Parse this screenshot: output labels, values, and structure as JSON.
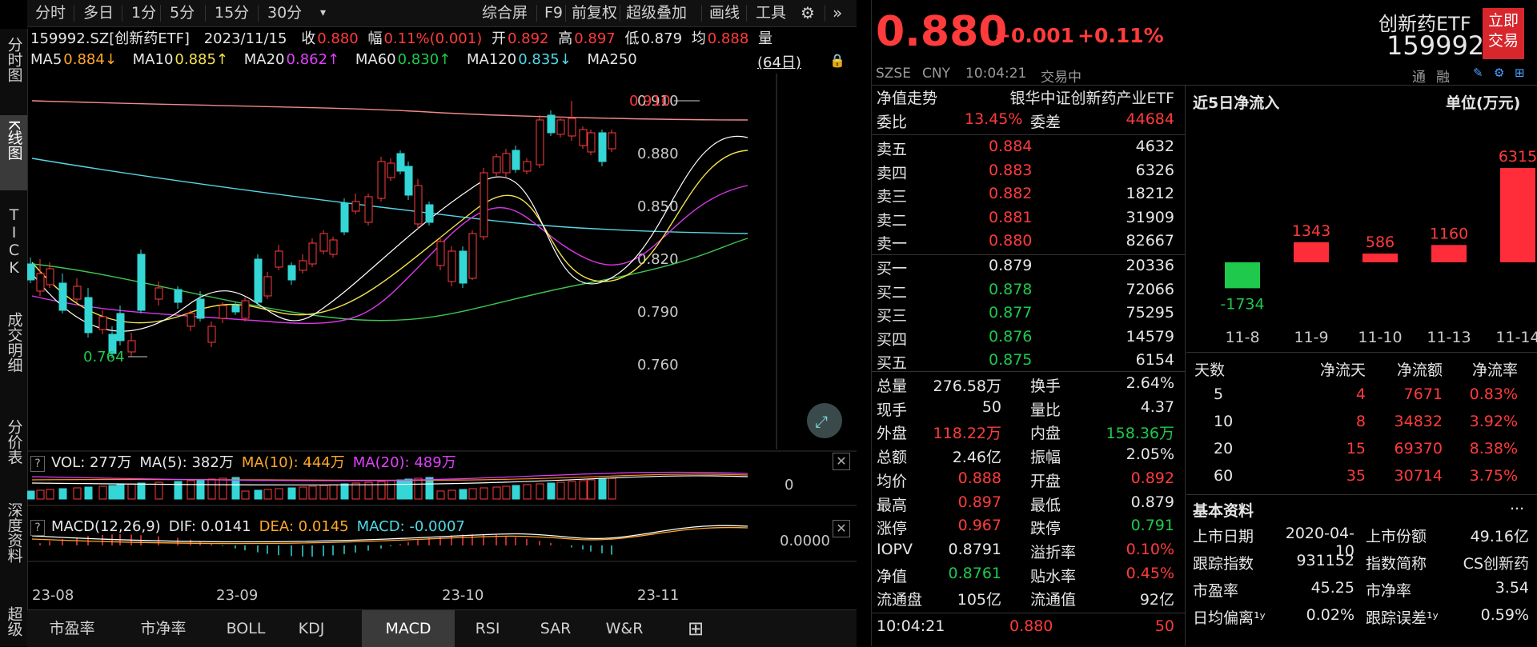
{
  "toolbar": {
    "periods": [
      "分时",
      "多日",
      "1分",
      "5分",
      "15分",
      "30分"
    ],
    "active_period": "",
    "right_items": [
      "综合屏",
      "F9",
      "前复权",
      "超级叠加",
      "画线",
      "工具"
    ]
  },
  "side_tabs": [
    "分时图",
    "K线图",
    "TICK",
    "成交明细",
    "分价表",
    "深度资料",
    "超级"
  ],
  "side_tabs_active": "K线图",
  "info_line": {
    "code_name": "159992.SZ[创新药ETF]",
    "date": "2023/11/15",
    "close_label": "收",
    "close": "0.880",
    "change_label": "幅",
    "change": "0.11%(0.001)",
    "open_label": "开",
    "open": "0.892",
    "high_label": "高",
    "high": "0.897",
    "low_label": "低",
    "low": "0.879",
    "avg_label": "均",
    "avg": "0.888",
    "vol_label": "量"
  },
  "ma_line": {
    "ma5": "MA5",
    "ma5_val": "0.884↓",
    "ma10": "MA10",
    "ma10_val": "0.885↑",
    "ma20": "MA20",
    "ma20_val": "0.862↑",
    "ma60": "MA60",
    "ma60_val": "0.830↑",
    "ma120": "MA120",
    "ma120_val": "0.835↓",
    "ma250": "MA250",
    "days": "(64日)"
  },
  "price_axis": [
    "0.910",
    "0.880",
    "0.850",
    "0.820",
    "0.790",
    "0.760"
  ],
  "annotations": {
    "high": "0.910",
    "low": "0.764"
  },
  "vol_panel": {
    "q": "?",
    "label": "VOL: 277万",
    "ma5": "MA(5): 382万",
    "ma10": "MA(10): 444万",
    "ma20": "MA(20): 489万",
    "axis_zero": "0"
  },
  "macd_panel": {
    "q": "?",
    "label": "MACD(12,26,9)",
    "dif": "DIF: 0.0141",
    "dea": "DEA: 0.0145",
    "macd": "MACD: -0.0007",
    "axis_zero": "0.0000"
  },
  "date_axis": [
    "23-08",
    "23-09",
    "23-10",
    "23-11"
  ],
  "bottom_tabs": [
    "市盈率",
    "市净率",
    "BOLL",
    "KDJ",
    "MACD",
    "RSI",
    "SAR",
    "W&R"
  ],
  "bottom_tabs_active": "MACD",
  "quote": {
    "price": "0.880",
    "change": "+0.001",
    "change_pct": "+0.11%",
    "name": "创新药ETF",
    "code": "159992",
    "trade_btn": "立即交易",
    "exchange": "SZSE",
    "currency": "CNY",
    "time": "10:04:21",
    "status": "交易中",
    "tong": "通",
    "rong": "融"
  },
  "nav_row": {
    "label": "净值走势",
    "fund": "银华中证创新药产业ETF"
  },
  "weibi": {
    "label": "委比",
    "value": "13.45%",
    "label2": "委差",
    "value2": "44684"
  },
  "asks": [
    {
      "label": "卖五",
      "price": "0.884",
      "vol": "4632"
    },
    {
      "label": "卖四",
      "price": "0.883",
      "vol": "6326"
    },
    {
      "label": "卖三",
      "price": "0.882",
      "vol": "18212"
    },
    {
      "label": "卖二",
      "price": "0.881",
      "vol": "31909"
    },
    {
      "label": "卖一",
      "price": "0.880",
      "vol": "82667"
    }
  ],
  "bids": [
    {
      "label": "买一",
      "price": "0.879",
      "vol": "20336"
    },
    {
      "label": "买二",
      "price": "0.878",
      "vol": "72066"
    },
    {
      "label": "买三",
      "price": "0.877",
      "vol": "75295"
    },
    {
      "label": "买四",
      "price": "0.876",
      "vol": "14579"
    },
    {
      "label": "买五",
      "price": "0.875",
      "vol": "6154"
    }
  ],
  "stats": [
    {
      "l1": "总量",
      "v1": "276.58万",
      "c1": "white",
      "l2": "换手",
      "v2": "2.64%",
      "c2": "white"
    },
    {
      "l1": "现手",
      "v1": "50",
      "c1": "white",
      "l2": "量比",
      "v2": "4.37",
      "c2": "white"
    },
    {
      "l1": "外盘",
      "v1": "118.22万",
      "c1": "red",
      "l2": "内盘",
      "v2": "158.36万",
      "c2": "green"
    },
    {
      "l1": "总额",
      "v1": "2.46亿",
      "c1": "white",
      "l2": "振幅",
      "v2": "2.05%",
      "c2": "white"
    },
    {
      "l1": "均价",
      "v1": "0.888",
      "c1": "red",
      "l2": "开盘",
      "v2": "0.892",
      "c2": "red"
    },
    {
      "l1": "最高",
      "v1": "0.897",
      "c1": "red",
      "l2": "最低",
      "v2": "0.879",
      "c2": "white"
    },
    {
      "l1": "涨停",
      "v1": "0.967",
      "c1": "red",
      "l2": "跌停",
      "v2": "0.791",
      "c2": "green"
    },
    {
      "l1": "IOPV",
      "v1": "0.8791",
      "c1": "white",
      "l2": "溢折率",
      "v2": "0.10%",
      "c2": "red"
    },
    {
      "l1": "净值",
      "v1": "0.8761",
      "c1": "green",
      "l2": "贴水率",
      "v2": "0.45%",
      "c2": "red"
    },
    {
      "l1": "流通盘",
      "v1": "105亿",
      "c1": "white",
      "l2": "流通值",
      "v2": "92亿",
      "c2": "white"
    }
  ],
  "tick": {
    "time": "10:04:21",
    "price": "0.880",
    "vol": "50"
  },
  "flow": {
    "title": "近5日净流入",
    "unit": "单位(万元)",
    "chart_data": {
      "type": "bar",
      "categories": [
        "11-8",
        "11-9",
        "11-10",
        "11-13",
        "11-14"
      ],
      "values": [
        -1734,
        1343,
        586,
        1160,
        6315
      ]
    },
    "table_head": [
      "天数",
      "净流天",
      "净流额",
      "净流率"
    ],
    "table": [
      [
        "5",
        "4",
        "7671",
        "0.83%"
      ],
      [
        "10",
        "8",
        "34832",
        "3.92%"
      ],
      [
        "20",
        "15",
        "69370",
        "8.38%"
      ],
      [
        "60",
        "35",
        "30714",
        "3.75%"
      ]
    ]
  },
  "basic": {
    "title": "基本资料",
    "more": "...",
    "rows": [
      {
        "l1": "上市日期",
        "v1": "2020-04-10",
        "l2": "上市份额",
        "v2": "49.16亿"
      },
      {
        "l1": "跟踪指数",
        "v1": "931152",
        "l2": "指数简称",
        "v2": "CS创新药"
      },
      {
        "l1": "市盈率",
        "v1": "45.25",
        "l2": "市净率",
        "v2": "3.54"
      },
      {
        "l1": "日均偏离¹ʸ",
        "v1": "0.02%",
        "l2": "跟踪误差¹ʸ",
        "v2": "0.59%"
      }
    ]
  },
  "colors": {
    "up": "#ff3b3b",
    "down": "#34d6d6",
    "flow_up": "#ff2d3a",
    "flow_down": "#1ec94c",
    "bg": "#000000"
  }
}
